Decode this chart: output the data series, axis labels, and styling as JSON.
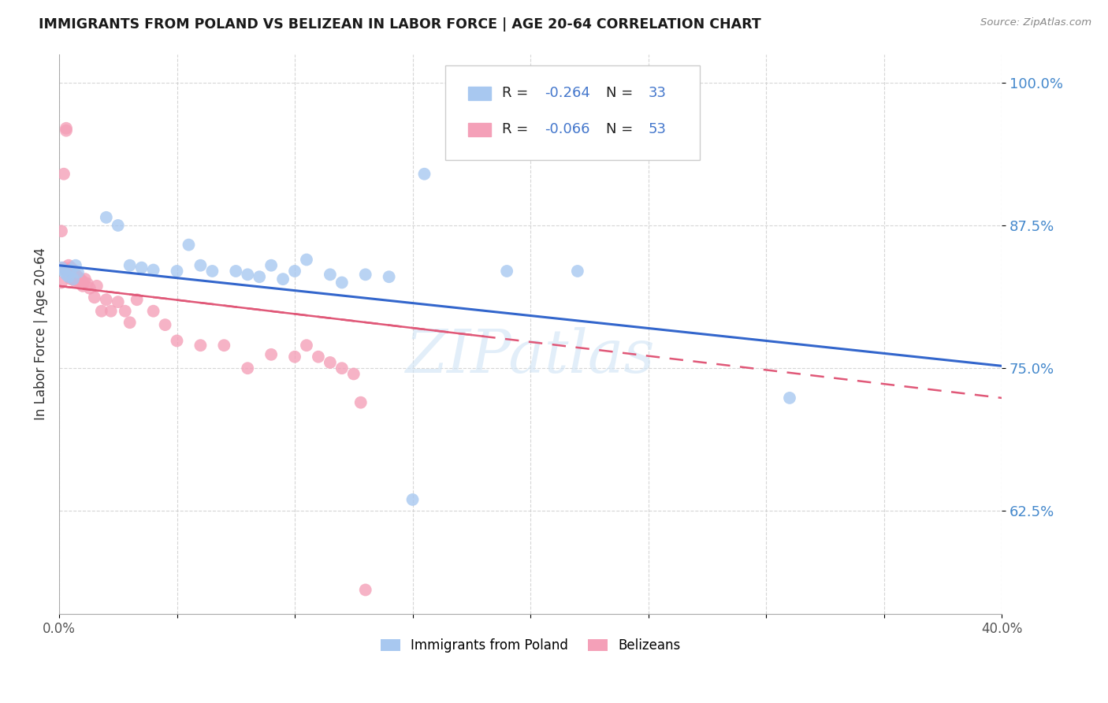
{
  "title": "IMMIGRANTS FROM POLAND VS BELIZEAN IN LABOR FORCE | AGE 20-64 CORRELATION CHART",
  "source": "Source: ZipAtlas.com",
  "ylabel": "In Labor Force | Age 20-64",
  "x_min": 0.0,
  "x_max": 0.4,
  "y_min": 0.535,
  "y_max": 1.025,
  "yticks": [
    0.625,
    0.75,
    0.875,
    1.0
  ],
  "ytick_labels": [
    "62.5%",
    "75.0%",
    "87.5%",
    "100.0%"
  ],
  "xticks": [
    0.0,
    0.05,
    0.1,
    0.15,
    0.2,
    0.25,
    0.3,
    0.35,
    0.4
  ],
  "xtick_labels": [
    "0.0%",
    "",
    "",
    "",
    "",
    "",
    "",
    "",
    "40.0%"
  ],
  "legend_r1": "-0.264",
  "legend_n1": "33",
  "legend_r2": "-0.066",
  "legend_n2": "53",
  "poland_color": "#A8C8F0",
  "belize_color": "#F4A0B8",
  "trend_blue": "#3366CC",
  "trend_pink": "#E05878",
  "watermark": "ZIPatlas",
  "legend_label1": "Immigrants from Poland",
  "legend_label2": "Belizeans",
  "poland_x": [
    0.001,
    0.002,
    0.003,
    0.004,
    0.005,
    0.006,
    0.007,
    0.008,
    0.02,
    0.025,
    0.03,
    0.035,
    0.04,
    0.05,
    0.055,
    0.06,
    0.065,
    0.075,
    0.08,
    0.085,
    0.09,
    0.095,
    0.1,
    0.105,
    0.115,
    0.12,
    0.13,
    0.14,
    0.15,
    0.155,
    0.19,
    0.22,
    0.31
  ],
  "poland_y": [
    0.838,
    0.835,
    0.832,
    0.83,
    0.836,
    0.828,
    0.84,
    0.834,
    0.882,
    0.875,
    0.84,
    0.838,
    0.836,
    0.835,
    0.858,
    0.84,
    0.835,
    0.835,
    0.832,
    0.83,
    0.84,
    0.828,
    0.835,
    0.845,
    0.832,
    0.825,
    0.832,
    0.83,
    0.635,
    0.92,
    0.835,
    0.835,
    0.724
  ],
  "belize_x": [
    0.001,
    0.001,
    0.002,
    0.002,
    0.003,
    0.003,
    0.003,
    0.004,
    0.004,
    0.004,
    0.005,
    0.005,
    0.005,
    0.005,
    0.006,
    0.006,
    0.006,
    0.007,
    0.007,
    0.007,
    0.008,
    0.008,
    0.009,
    0.009,
    0.01,
    0.01,
    0.011,
    0.012,
    0.013,
    0.015,
    0.016,
    0.018,
    0.02,
    0.022,
    0.025,
    0.028,
    0.03,
    0.033,
    0.04,
    0.045,
    0.05,
    0.06,
    0.07,
    0.08,
    0.09,
    0.1,
    0.105,
    0.11,
    0.115,
    0.12,
    0.125,
    0.128,
    0.13
  ],
  "belize_y": [
    0.87,
    0.825,
    0.838,
    0.92,
    0.96,
    0.958,
    0.835,
    0.84,
    0.835,
    0.832,
    0.838,
    0.834,
    0.83,
    0.828,
    0.836,
    0.832,
    0.828,
    0.832,
    0.828,
    0.826,
    0.83,
    0.826,
    0.828,
    0.824,
    0.826,
    0.822,
    0.828,
    0.824,
    0.82,
    0.812,
    0.822,
    0.8,
    0.81,
    0.8,
    0.808,
    0.8,
    0.79,
    0.81,
    0.8,
    0.788,
    0.774,
    0.77,
    0.77,
    0.75,
    0.762,
    0.76,
    0.77,
    0.76,
    0.755,
    0.75,
    0.745,
    0.72,
    0.556
  ],
  "blue_trend_x0": 0.0,
  "blue_trend_y0": 0.84,
  "blue_trend_x1": 0.4,
  "blue_trend_y1": 0.752,
  "pink_trend_x0": 0.0,
  "pink_trend_y0": 0.822,
  "pink_trend_x1": 0.4,
  "pink_trend_y1": 0.724
}
